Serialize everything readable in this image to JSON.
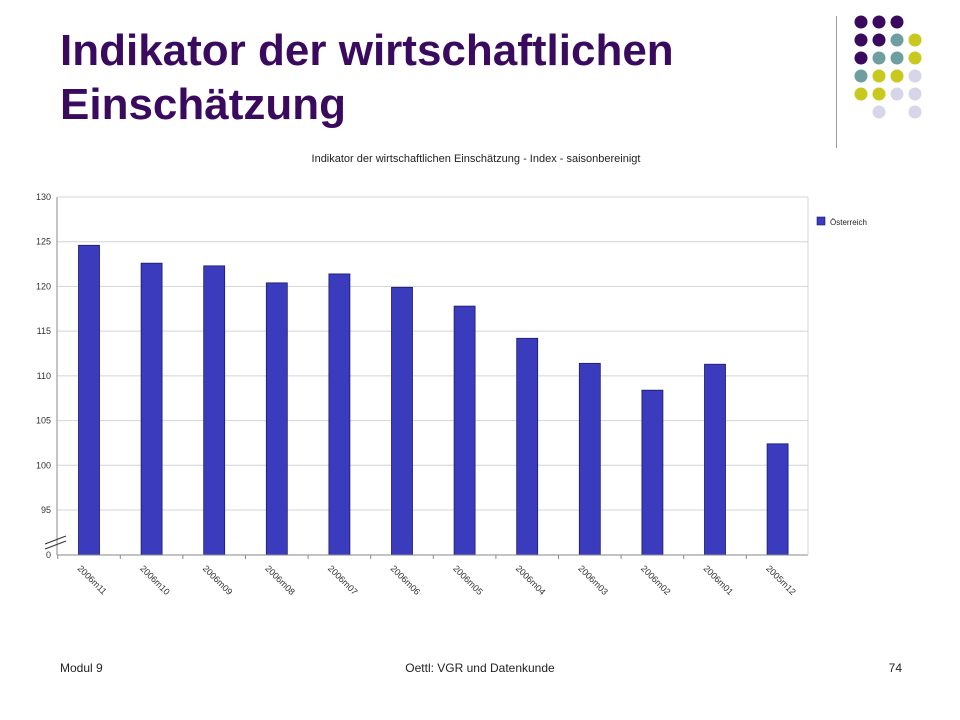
{
  "slide": {
    "title": "Indikator der wirtschaftlichen Einschätzung"
  },
  "decoration": {
    "dot_colors": [
      "#3a0a5e",
      "#6f9ea0",
      "#c8c81e",
      "#d6d6e8"
    ]
  },
  "footer": {
    "left": "Modul 9",
    "center": "Oettl: VGR und Datenkunde",
    "page": "74"
  },
  "chart_data": {
    "type": "bar",
    "title": "Indikator der wirtschaftlichen Einschätzung - Index - saisonbereinigt",
    "categories": [
      "2006m11",
      "2006m10",
      "2006m09",
      "2006m08",
      "2006m07",
      "2006m06",
      "2006m05",
      "2006m04",
      "2006m03",
      "2006m02",
      "2006m01",
      "2005m12"
    ],
    "series": [
      {
        "name": "Österreich",
        "color": "#3b3bbd",
        "values": [
          124.6,
          122.6,
          122.3,
          120.4,
          121.4,
          119.9,
          117.8,
          114.2,
          111.4,
          108.4,
          111.3,
          102.4
        ]
      }
    ],
    "yticks": [
      0,
      95,
      100,
      105,
      110,
      115,
      120,
      125,
      130
    ],
    "ylim": [
      0,
      130
    ],
    "axis_break": true,
    "grid": true,
    "legend": "right"
  }
}
